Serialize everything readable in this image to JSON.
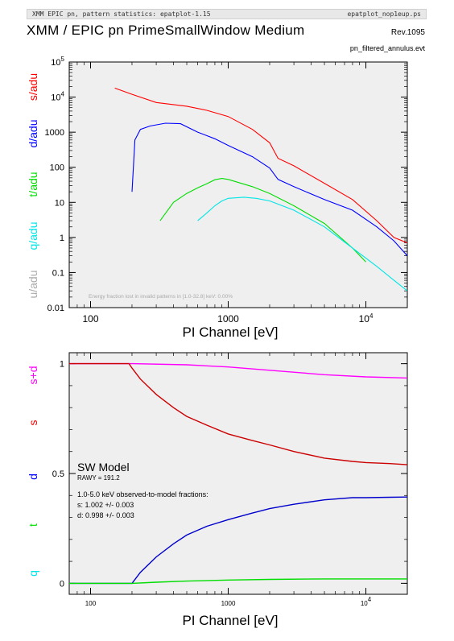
{
  "header": {
    "left": "XMM EPIC pn, pattern statistics: epatplot-1.15",
    "right": "epatplot_nop1eup.ps",
    "title": "XMM / EPIC pn PrimeSmallWindow Medium",
    "revision": "Rev.1095",
    "filename": "pn_filtered_annulus.evt"
  },
  "colors": {
    "s": "#ff0000",
    "d": "#0000ff",
    "t": "#00dd00",
    "q": "#00e5e5",
    "u": "#aaaaaa",
    "sd": "#ff00ff",
    "model": "#000000"
  },
  "chart_data": [
    {
      "type": "line",
      "xlabel": "PI Channel [eV]",
      "xscale": "log",
      "yscale": "log",
      "xlim": [
        70,
        20000
      ],
      "ylim": [
        0.01,
        100000
      ],
      "xticks": [
        {
          "v": 100,
          "label": "100"
        },
        {
          "v": 1000,
          "label": "1000"
        },
        {
          "v": 10000,
          "label": "10",
          "sup": "4"
        }
      ],
      "yticks": [
        {
          "v": 0.01,
          "label": "0.01"
        },
        {
          "v": 0.1,
          "label": "0.1"
        },
        {
          "v": 1,
          "label": "1"
        },
        {
          "v": 10,
          "label": "10"
        },
        {
          "v": 100,
          "label": "100"
        },
        {
          "v": 1000,
          "label": "1000"
        },
        {
          "v": 10000,
          "label": "10",
          "sup": "4"
        },
        {
          "v": 100000,
          "label": "10",
          "sup": "5"
        }
      ],
      "series_labels": [
        {
          "key": "s",
          "label": "s/adu"
        },
        {
          "key": "d",
          "label": "d/adu"
        },
        {
          "key": "t",
          "label": "t/adu"
        },
        {
          "key": "q",
          "label": "q/adu"
        },
        {
          "key": "u",
          "label": "u/adu"
        }
      ],
      "annotation": "Energy fraction lost in invalid patterns in [1.0-32.8] keV:  0.00%",
      "series": [
        {
          "key": "s",
          "x": [
            150,
            200,
            300,
            500,
            700,
            1000,
            1500,
            2000,
            2300,
            3000,
            5000,
            8000,
            12000,
            16000,
            20000
          ],
          "y": [
            18000,
            12000,
            7000,
            5500,
            4200,
            2800,
            1200,
            500,
            180,
            110,
            35,
            12,
            3,
            1,
            0.7
          ]
        },
        {
          "key": "d",
          "x": [
            200,
            210,
            230,
            270,
            350,
            450,
            600,
            800,
            1000,
            1500,
            2000,
            2300,
            3000,
            5000,
            8000,
            12000,
            16000,
            20000
          ],
          "y": [
            20,
            600,
            1200,
            1500,
            1800,
            1750,
            1000,
            650,
            420,
            200,
            95,
            45,
            28,
            12,
            6,
            2,
            0.8,
            0.3
          ]
        },
        {
          "key": "t",
          "x": [
            320,
            400,
            500,
            600,
            700,
            800,
            900,
            1000,
            1500,
            2000,
            3000,
            5000,
            8000,
            10000
          ],
          "y": [
            3,
            10,
            18,
            26,
            34,
            44,
            48,
            45,
            28,
            18,
            8,
            2.5,
            0.5,
            0.2
          ]
        },
        {
          "key": "q",
          "x": [
            600,
            700,
            800,
            900,
            1000,
            1300,
            1600,
            2000,
            3000,
            5000,
            8000,
            12000,
            16000,
            20000
          ],
          "y": [
            3,
            5,
            8,
            11,
            13,
            14,
            13,
            11,
            6,
            2,
            0.5,
            0.15,
            0.06,
            0.03
          ]
        }
      ]
    },
    {
      "type": "line",
      "xlabel": "PI Channel [eV]",
      "xscale": "log",
      "yscale": "linear",
      "xlim": [
        70,
        20000
      ],
      "ylim": [
        -0.05,
        1.05
      ],
      "xticks": [
        {
          "v": 100,
          "label": "100"
        },
        {
          "v": 1000,
          "label": "1000"
        },
        {
          "v": 10000,
          "label": "10",
          "sup": "4"
        }
      ],
      "yticks": [
        {
          "v": 0,
          "label": "0"
        },
        {
          "v": 0.5,
          "label": "0.5"
        },
        {
          "v": 1,
          "label": "1"
        }
      ],
      "series_labels": [
        {
          "key": "sd",
          "label": "s+d"
        },
        {
          "key": "s",
          "label": "s"
        },
        {
          "key": "d",
          "label": "d"
        },
        {
          "key": "t",
          "label": "t"
        },
        {
          "key": "q",
          "label": "q"
        }
      ],
      "model_title": "SW Model",
      "rawy": "RAWY = 191.2",
      "fractions_title": "1.0-5.0 keV observed-to-model fractions:",
      "fraction_s": "s: 1.002 +/- 0.003",
      "fraction_d": "d: 0.998 +/- 0.003",
      "series": [
        {
          "key": "sd",
          "x": [
            70,
            200,
            500,
            1000,
            2000,
            5000,
            10000,
            20000
          ],
          "y": [
            1.0,
            1.0,
            0.995,
            0.985,
            0.97,
            0.95,
            0.94,
            0.935
          ]
        },
        {
          "key": "s",
          "x": [
            70,
            190,
            200,
            230,
            300,
            400,
            500,
            700,
            1000,
            1500,
            2000,
            3000,
            5000,
            8000,
            10000,
            15000,
            20000
          ],
          "y": [
            1.0,
            1.0,
            0.98,
            0.93,
            0.86,
            0.8,
            0.76,
            0.72,
            0.68,
            0.65,
            0.63,
            0.6,
            0.57,
            0.555,
            0.55,
            0.545,
            0.54
          ]
        },
        {
          "key": "d",
          "x": [
            70,
            200,
            230,
            300,
            400,
            500,
            700,
            1000,
            1500,
            2000,
            3000,
            5000,
            8000,
            10000,
            15000,
            20000
          ],
          "y": [
            0.0,
            0.0,
            0.05,
            0.12,
            0.18,
            0.22,
            0.26,
            0.29,
            0.32,
            0.34,
            0.36,
            0.38,
            0.39,
            0.39,
            0.392,
            0.393
          ]
        },
        {
          "key": "t",
          "x": [
            70,
            200,
            300,
            500,
            1000,
            2000,
            5000,
            10000,
            20000
          ],
          "y": [
            0.0,
            0.0,
            0.005,
            0.01,
            0.015,
            0.018,
            0.02,
            0.02,
            0.02
          ]
        }
      ]
    }
  ]
}
